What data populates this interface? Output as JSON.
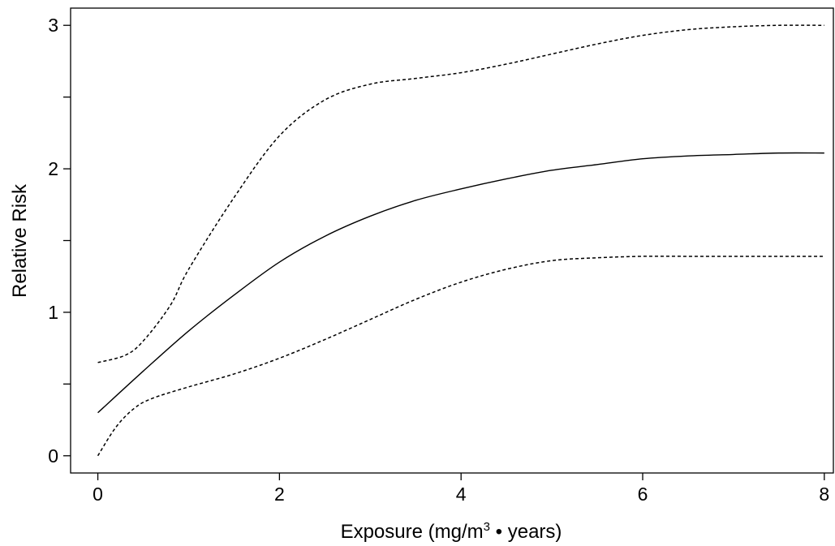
{
  "chart_data": {
    "type": "line",
    "title": "",
    "xlabel_main": "Exposure (mg/m",
    "xlabel_sup": "3",
    "xlabel_tail": " • years)",
    "xlabel": "Exposure (mg/m³ • years)",
    "ylabel": "Relative Risk",
    "xlim": [
      -0.3,
      8.1
    ],
    "ylim": [
      -0.12,
      3.12
    ],
    "x_ticks": [
      0,
      2,
      4,
      6,
      8
    ],
    "x_tick_labels": [
      "0",
      "2",
      "4",
      "6",
      "8"
    ],
    "y_major_ticks": [
      0,
      1,
      2,
      3
    ],
    "y_tick_labels": [
      "0",
      "1",
      "2",
      "3"
    ],
    "y_minor_ticks": [
      0.5,
      1.5,
      2.5
    ],
    "grid": false,
    "legend": "none",
    "series": [
      {
        "style": "solid",
        "x": [
          0,
          0.5,
          1,
          1.5,
          2,
          2.5,
          3,
          3.5,
          4,
          4.5,
          5,
          5.5,
          6,
          6.5,
          7,
          7.5,
          8
        ],
        "y": [
          0.3,
          0.59,
          0.87,
          1.12,
          1.35,
          1.53,
          1.67,
          1.78,
          1.86,
          1.93,
          1.99,
          2.03,
          2.07,
          2.09,
          2.1,
          2.11,
          2.11
        ]
      },
      {
        "style": "dashed",
        "x": [
          0,
          0.3,
          0.5,
          0.8,
          1,
          1.5,
          2,
          2.5,
          3,
          3.5,
          4,
          4.5,
          5,
          5.5,
          6,
          6.5,
          7,
          7.5,
          8
        ],
        "y": [
          0.65,
          0.7,
          0.8,
          1.05,
          1.3,
          1.8,
          2.23,
          2.48,
          2.59,
          2.63,
          2.67,
          2.73,
          2.8,
          2.87,
          2.93,
          2.97,
          2.99,
          3.0,
          3.0
        ]
      },
      {
        "style": "dashed",
        "x": [
          0,
          0.2,
          0.4,
          0.6,
          1,
          1.5,
          2,
          2.5,
          3,
          3.5,
          4,
          4.5,
          5,
          5.5,
          6,
          6.5,
          7,
          7.5,
          8
        ],
        "y": [
          0.0,
          0.2,
          0.33,
          0.4,
          0.48,
          0.57,
          0.68,
          0.81,
          0.95,
          1.09,
          1.21,
          1.3,
          1.36,
          1.38,
          1.39,
          1.39,
          1.39,
          1.39,
          1.39
        ]
      }
    ]
  }
}
